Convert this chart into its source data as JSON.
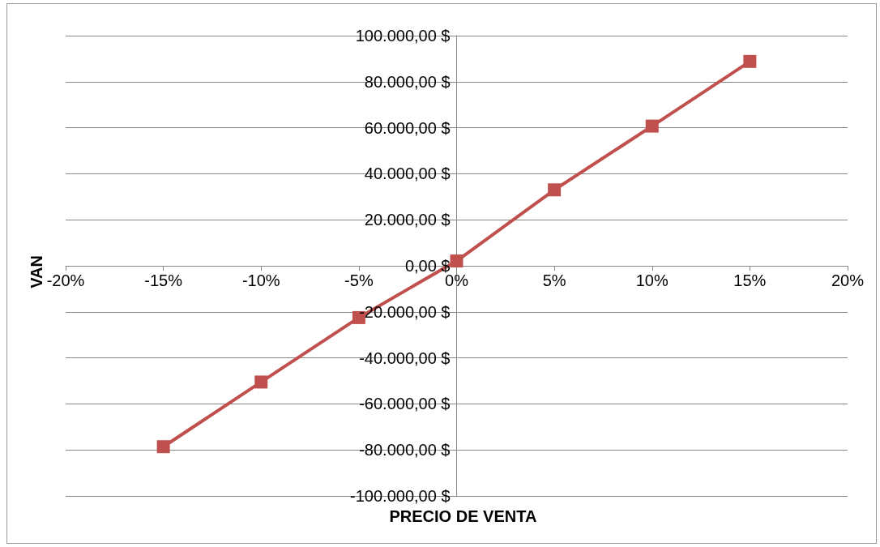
{
  "chart_data": {
    "type": "line",
    "xlabel": "PRECIO DE VENTA",
    "ylabel": "VAN",
    "x": [
      -15,
      -10,
      -5,
      0,
      5,
      10,
      15
    ],
    "series": [
      {
        "color": "#c0504d",
        "values": [
          -78600,
          -50500,
          -22500,
          2100,
          33000,
          60700,
          88800
        ]
      }
    ],
    "xlim": [
      -20,
      20
    ],
    "xticks": [
      {
        "value": -20,
        "label": "-20%"
      },
      {
        "value": -15,
        "label": "-15%"
      },
      {
        "value": -10,
        "label": "-10%"
      },
      {
        "value": -5,
        "label": "-5%"
      },
      {
        "value": 0,
        "label": "0%"
      },
      {
        "value": 5,
        "label": "5%"
      },
      {
        "value": 10,
        "label": "10%"
      },
      {
        "value": 15,
        "label": "15%"
      },
      {
        "value": 20,
        "label": "20%"
      }
    ],
    "ylim": [
      -100000,
      100000
    ],
    "yticks": [
      {
        "value": -100000,
        "label": "-100.000,00 $"
      },
      {
        "value": -80000,
        "label": "-80.000,00 $"
      },
      {
        "value": -60000,
        "label": "-60.000,00 $"
      },
      {
        "value": -40000,
        "label": "-40.000,00 $"
      },
      {
        "value": -20000,
        "label": "-20.000,00 $"
      },
      {
        "value": 0,
        "label": "0,00 $"
      },
      {
        "value": 20000,
        "label": "20.000,00 $"
      },
      {
        "value": 40000,
        "label": "40.000,00 $"
      },
      {
        "value": 60000,
        "label": "60.000,00 $"
      },
      {
        "value": 80000,
        "label": "80.000,00 $"
      },
      {
        "value": 100000,
        "label": "100.000,00 $"
      }
    ],
    "grid": "y",
    "marker": "square",
    "line_style": "solid"
  }
}
